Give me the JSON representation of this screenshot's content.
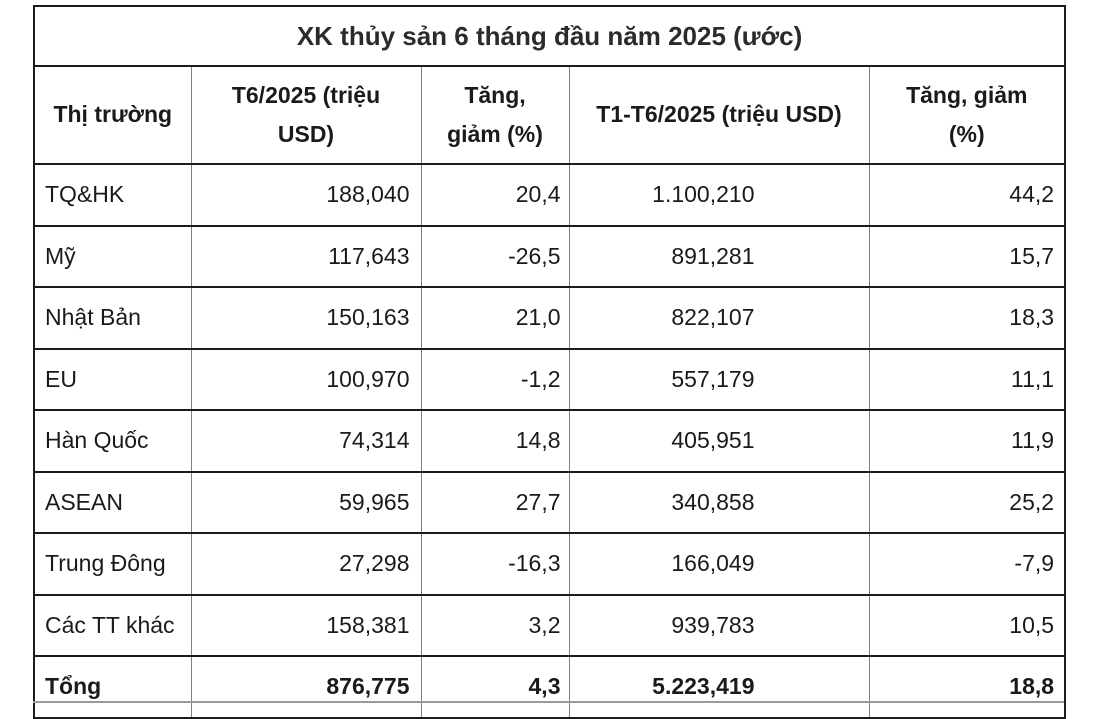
{
  "table": {
    "title": "XK thủy sản 6 tháng đầu năm 2025 (ước)",
    "header_cells": [
      "Thị trường",
      "T6/2025 (triệu\nUSD)",
      "Tăng,\ngiảm (%)",
      "T1-T6/2025 (triệu USD)",
      "Tăng, giảm\n(%)"
    ],
    "rows": [
      [
        "TQ&HK",
        "188,040",
        "20,4",
        "1.100,210",
        "44,2"
      ],
      [
        "Mỹ",
        "117,643",
        "-26,5",
        "891,281",
        "15,7"
      ],
      [
        "Nhật Bản",
        "150,163",
        "21,0",
        "822,107",
        "18,3"
      ],
      [
        "EU",
        "100,970",
        "-1,2",
        "557,179",
        "11,1"
      ],
      [
        "Hàn Quốc",
        "74,314",
        "14,8",
        "405,951",
        "11,9"
      ],
      [
        "ASEAN",
        "59,965",
        "27,7",
        "340,858",
        "25,2"
      ],
      [
        "Trung Đông",
        "27,298",
        "-16,3",
        "166,049",
        "-7,9"
      ],
      [
        "Các TT khác",
        "158,381",
        "3,2",
        "939,783",
        "10,5"
      ],
      [
        "Tổng",
        "876,775",
        "4,3",
        "5.223,419",
        "18,8"
      ]
    ]
  },
  "chart_data": {
    "type": "table",
    "title": "XK thủy sản 6 tháng đầu năm 2025 (ước)",
    "columns": [
      "Thị trường",
      "T6/2025 (triệu USD)",
      "Tăng, giảm (%)",
      "T1-T6/2025 (triệu USD)",
      "Tăng, giảm (%)"
    ],
    "unit": "triệu USD",
    "rows": [
      {
        "market": "TQ&HK",
        "t6_2025": 188.04,
        "change_month_pct": 20.4,
        "t1_t6_2025": 1100.21,
        "change_cum_pct": 44.2
      },
      {
        "market": "Mỹ",
        "t6_2025": 117.643,
        "change_month_pct": -26.5,
        "t1_t6_2025": 891.281,
        "change_cum_pct": 15.7
      },
      {
        "market": "Nhật Bản",
        "t6_2025": 150.163,
        "change_month_pct": 21.0,
        "t1_t6_2025": 822.107,
        "change_cum_pct": 18.3
      },
      {
        "market": "EU",
        "t6_2025": 100.97,
        "change_month_pct": -1.2,
        "t1_t6_2025": 557.179,
        "change_cum_pct": 11.1
      },
      {
        "market": "Hàn Quốc",
        "t6_2025": 74.314,
        "change_month_pct": 14.8,
        "t1_t6_2025": 405.951,
        "change_cum_pct": 11.9
      },
      {
        "market": "ASEAN",
        "t6_2025": 59.965,
        "change_month_pct": 27.7,
        "t1_t6_2025": 340.858,
        "change_cum_pct": 25.2
      },
      {
        "market": "Trung Đông",
        "t6_2025": 27.298,
        "change_month_pct": -16.3,
        "t1_t6_2025": 166.049,
        "change_cum_pct": -7.9
      },
      {
        "market": "Các TT khác",
        "t6_2025": 158.381,
        "change_month_pct": 3.2,
        "t1_t6_2025": 939.783,
        "change_cum_pct": 10.5
      },
      {
        "market": "Tổng",
        "t6_2025": 876.775,
        "change_month_pct": 4.3,
        "t1_t6_2025": 5223.419,
        "change_cum_pct": 18.8
      }
    ]
  },
  "colors": {
    "background": "#ffffff",
    "text": "#1a1a1a",
    "title_text": "#2b2b2b",
    "border_dark": "#1c1c1c",
    "divider_gray": "#808080"
  }
}
